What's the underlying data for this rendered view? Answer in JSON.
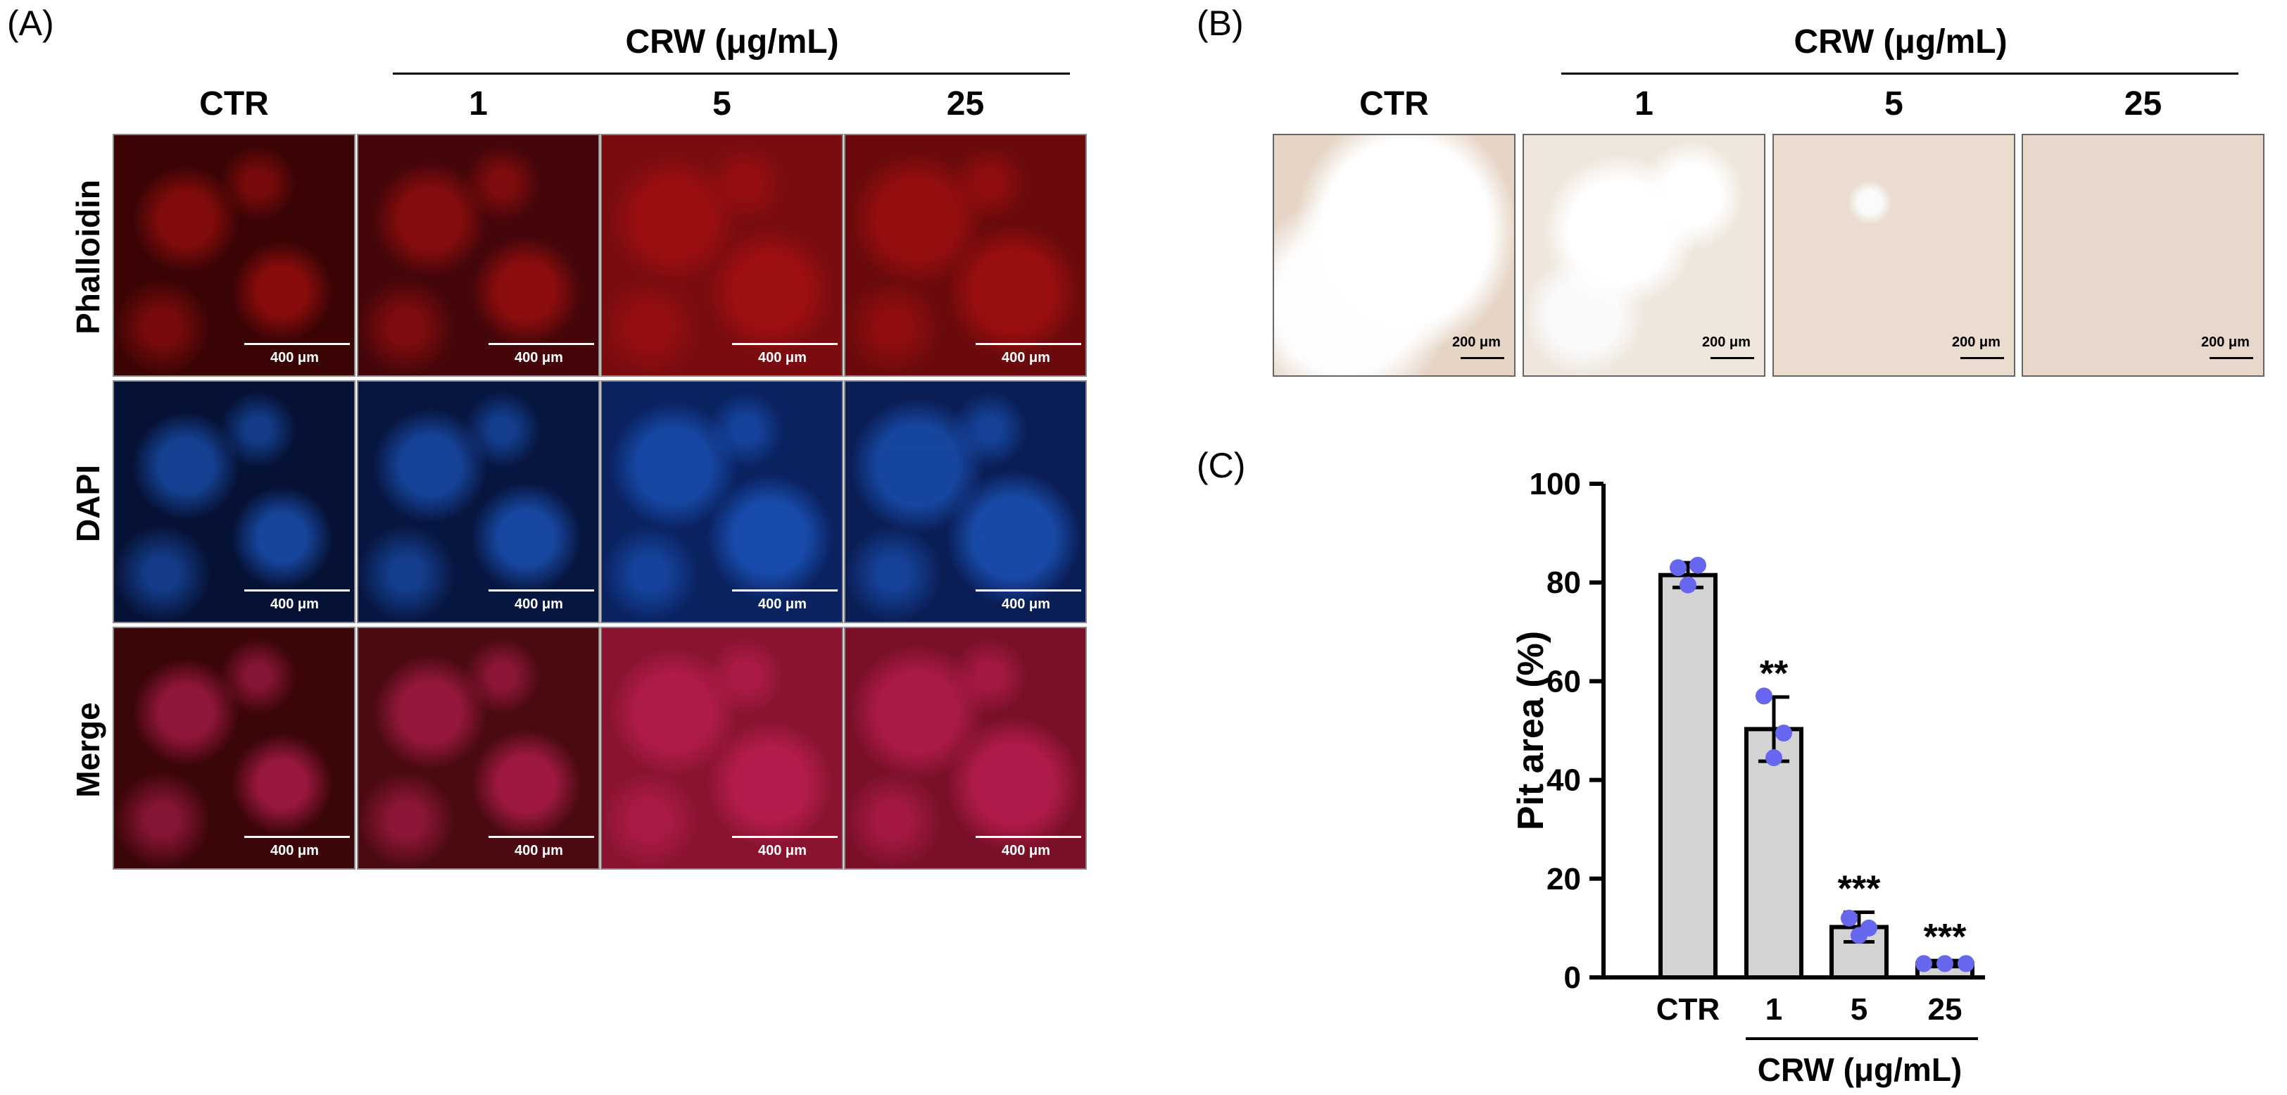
{
  "panelA": {
    "label": "(A)",
    "group_label": "CRW (μg/mL)",
    "columns": [
      "CTR",
      "1",
      "5",
      "25"
    ],
    "rows": [
      "Phalloidin",
      "DAPI",
      "Merge"
    ],
    "scale_bar": "400 μm",
    "colors": {
      "phalloidin": "#b01010",
      "dapi": "#1f5fd0",
      "merge": "#c8205a"
    }
  },
  "panelB": {
    "label": "(B)",
    "group_label": "CRW (μg/mL)",
    "columns": [
      "CTR",
      "1",
      "5",
      "25"
    ],
    "scale_bar": "200 μm"
  },
  "panelC": {
    "label": "(C)"
  },
  "chart_data": {
    "type": "bar",
    "categories": [
      "CTR",
      "1",
      "5",
      "25"
    ],
    "values": [
      81.5,
      50.3,
      10.2,
      2.8
    ],
    "errors": [
      2.5,
      6.5,
      3.0,
      0.6
    ],
    "points": [
      [
        83,
        79.5,
        83.5
      ],
      [
        57,
        44.5,
        49.5
      ],
      [
        12,
        8.5,
        10
      ],
      [
        2.8,
        2.8,
        2.8
      ]
    ],
    "significance": [
      "",
      "**",
      "***",
      "***"
    ],
    "xlabel": "CRW (μg/mL)",
    "ylabel": "Pit area (%)",
    "ylim": [
      0,
      100
    ],
    "yticks": [
      0,
      20,
      40,
      60,
      80,
      100
    ],
    "bar_color": "#d3d3d3",
    "point_color": "#6666ee"
  }
}
